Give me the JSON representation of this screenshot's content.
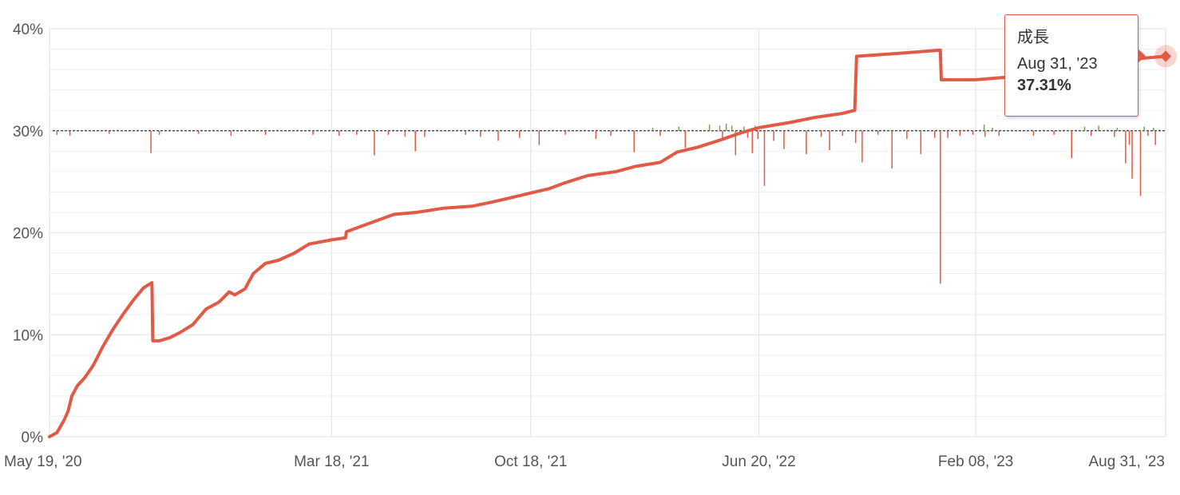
{
  "colors": {
    "growth_line": "#e05a45",
    "negative_bar": "#e05a45",
    "positive_bar": "#6aa84f",
    "grid": "#e6e6e6",
    "baseline": "#333333"
  },
  "tooltip": {
    "series": "成長",
    "date": "Aug 31, '23",
    "value": "37.31%"
  },
  "chart_data": {
    "type": "line",
    "ylim": [
      0,
      40
    ],
    "y_tick_values": [
      0,
      10,
      20,
      30,
      40
    ],
    "y_ticks": [
      "0%",
      "10%",
      "20%",
      "30%",
      "40%"
    ],
    "x_range": [
      "2020-05-19",
      "2023-08-31"
    ],
    "x_tick_dates": [
      "2020-05-19",
      "2021-03-18",
      "2021-10-18",
      "2022-06-20",
      "2023-02-08",
      "2023-08-31"
    ],
    "x_ticks": [
      "May 19, '20",
      "Mar 18, '21",
      "Oct 18, '21",
      "Jun 20, '22",
      "Feb 08, '23",
      "Aug 31, '23"
    ],
    "grid": true,
    "series": [
      {
        "name": "成長",
        "points": [
          [
            "2020-05-19",
            0.0
          ],
          [
            "2020-05-27",
            0.4
          ],
          [
            "2020-06-03",
            1.5
          ],
          [
            "2020-06-08",
            2.5
          ],
          [
            "2020-06-12",
            4.0
          ],
          [
            "2020-06-18",
            5.0
          ],
          [
            "2020-06-26",
            5.8
          ],
          [
            "2020-07-05",
            7.0
          ],
          [
            "2020-07-15",
            8.8
          ],
          [
            "2020-07-26",
            10.5
          ],
          [
            "2020-08-06",
            12.0
          ],
          [
            "2020-08-18",
            13.5
          ],
          [
            "2020-08-28",
            14.6
          ],
          [
            "2020-09-06",
            15.1
          ],
          [
            "2020-09-07",
            9.4
          ],
          [
            "2020-09-14",
            9.4
          ],
          [
            "2020-09-25",
            9.7
          ],
          [
            "2020-10-06",
            10.2
          ],
          [
            "2020-10-20",
            11.0
          ],
          [
            "2020-11-03",
            12.5
          ],
          [
            "2020-11-17",
            13.2
          ],
          [
            "2020-11-28",
            14.2
          ],
          [
            "2020-12-04",
            13.9
          ],
          [
            "2020-12-15",
            14.5
          ],
          [
            "2020-12-24",
            16.0
          ],
          [
            "2021-01-06",
            17.0
          ],
          [
            "2021-01-20",
            17.3
          ],
          [
            "2021-02-06",
            18.0
          ],
          [
            "2021-02-22",
            18.9
          ],
          [
            "2021-03-18",
            19.3
          ],
          [
            "2021-04-02",
            19.5
          ],
          [
            "2021-04-03",
            20.1
          ],
          [
            "2021-04-24",
            20.8
          ],
          [
            "2021-05-12",
            21.4
          ],
          [
            "2021-05-24",
            21.8
          ],
          [
            "2021-06-18",
            22.0
          ],
          [
            "2021-07-16",
            22.4
          ],
          [
            "2021-08-16",
            22.6
          ],
          [
            "2021-09-06",
            23.0
          ],
          [
            "2021-09-25",
            23.4
          ],
          [
            "2021-10-18",
            23.9
          ],
          [
            "2021-11-06",
            24.3
          ],
          [
            "2021-11-24",
            24.9
          ],
          [
            "2021-12-18",
            25.6
          ],
          [
            "2022-01-18",
            26.0
          ],
          [
            "2022-02-07",
            26.5
          ],
          [
            "2022-03-06",
            26.9
          ],
          [
            "2022-03-24",
            27.9
          ],
          [
            "2022-04-16",
            28.4
          ],
          [
            "2022-05-10",
            29.1
          ],
          [
            "2022-06-01",
            29.8
          ],
          [
            "2022-06-20",
            30.3
          ],
          [
            "2022-07-23",
            30.8
          ],
          [
            "2022-08-19",
            31.3
          ],
          [
            "2022-09-18",
            31.7
          ],
          [
            "2022-10-01",
            32.0
          ],
          [
            "2022-10-03",
            37.3
          ],
          [
            "2022-11-18",
            37.6
          ],
          [
            "2023-01-01",
            37.9
          ],
          [
            "2023-01-02",
            35.0
          ],
          [
            "2023-02-08",
            35.0
          ],
          [
            "2023-03-08",
            35.2
          ],
          [
            "2023-04-08",
            35.4
          ],
          [
            "2023-05-19",
            36.0
          ],
          [
            "2023-06-28",
            36.8
          ],
          [
            "2023-08-31",
            37.3
          ]
        ]
      }
    ],
    "bar_series": {
      "baseline": 30,
      "negative": [
        [
          "2020-05-27",
          29.6
        ],
        [
          "2020-06-10",
          29.5
        ],
        [
          "2020-07-22",
          29.7
        ],
        [
          "2020-09-05",
          27.8
        ],
        [
          "2020-09-14",
          29.6
        ],
        [
          "2020-10-26",
          29.7
        ],
        [
          "2020-11-30",
          29.5
        ],
        [
          "2021-01-06",
          29.6
        ],
        [
          "2021-02-26",
          29.6
        ],
        [
          "2021-03-26",
          29.5
        ],
        [
          "2021-04-14",
          29.6
        ],
        [
          "2021-05-03",
          27.6
        ],
        [
          "2021-05-18",
          29.6
        ],
        [
          "2021-06-05",
          29.4
        ],
        [
          "2021-06-16",
          28.0
        ],
        [
          "2021-06-26",
          29.4
        ],
        [
          "2021-08-09",
          29.6
        ],
        [
          "2021-08-25",
          29.4
        ],
        [
          "2021-09-13",
          29.0
        ],
        [
          "2021-10-06",
          29.3
        ],
        [
          "2021-10-27",
          28.6
        ],
        [
          "2021-11-24",
          29.6
        ],
        [
          "2021-12-27",
          29.2
        ],
        [
          "2022-01-12",
          29.5
        ],
        [
          "2022-02-06",
          27.9
        ],
        [
          "2022-03-06",
          29.5
        ],
        [
          "2022-04-02",
          28.3
        ],
        [
          "2022-05-12",
          29.2
        ],
        [
          "2022-05-26",
          27.6
        ],
        [
          "2022-06-08",
          29.3
        ],
        [
          "2022-06-13",
          27.8
        ],
        [
          "2022-06-19",
          29.2
        ],
        [
          "2022-06-26",
          24.6
        ],
        [
          "2022-07-06",
          29.0
        ],
        [
          "2022-07-17",
          28.2
        ],
        [
          "2022-08-10",
          27.7
        ],
        [
          "2022-08-26",
          29.4
        ],
        [
          "2022-09-04",
          28.1
        ],
        [
          "2022-09-18",
          29.5
        ],
        [
          "2022-10-02",
          28.8
        ],
        [
          "2022-10-09",
          26.9
        ],
        [
          "2022-10-26",
          29.6
        ],
        [
          "2022-11-10",
          26.3
        ],
        [
          "2022-11-26",
          29.2
        ],
        [
          "2022-12-11",
          27.7
        ],
        [
          "2022-12-26",
          29.3
        ],
        [
          "2023-01-01",
          15.0
        ],
        [
          "2023-01-09",
          29.3
        ],
        [
          "2023-01-22",
          29.5
        ],
        [
          "2023-02-05",
          29.6
        ],
        [
          "2023-02-18",
          29.4
        ],
        [
          "2023-03-05",
          29.5
        ],
        [
          "2023-04-11",
          29.5
        ],
        [
          "2023-05-03",
          29.6
        ],
        [
          "2023-05-22",
          27.3
        ],
        [
          "2023-06-12",
          29.5
        ],
        [
          "2023-07-07",
          29.4
        ],
        [
          "2023-07-19",
          26.8
        ],
        [
          "2023-07-23",
          28.6
        ],
        [
          "2023-07-26",
          25.3
        ],
        [
          "2023-08-04",
          23.6
        ],
        [
          "2023-08-12",
          29.5
        ],
        [
          "2023-08-20",
          28.6
        ]
      ],
      "positive": [
        [
          "2022-02-26",
          30.3
        ],
        [
          "2022-03-26",
          30.4
        ],
        [
          "2022-04-28",
          30.6
        ],
        [
          "2022-05-09",
          30.5
        ],
        [
          "2022-05-16",
          30.7
        ],
        [
          "2022-05-22",
          30.5
        ],
        [
          "2022-06-04",
          30.4
        ],
        [
          "2022-06-16",
          30.5
        ],
        [
          "2023-02-17",
          30.6
        ],
        [
          "2023-02-26",
          30.3
        ],
        [
          "2023-06-05",
          30.4
        ],
        [
          "2023-06-20",
          30.5
        ],
        [
          "2023-07-10",
          30.3
        ],
        [
          "2023-08-08",
          30.4
        ],
        [
          "2023-08-18",
          30.3
        ]
      ]
    }
  }
}
